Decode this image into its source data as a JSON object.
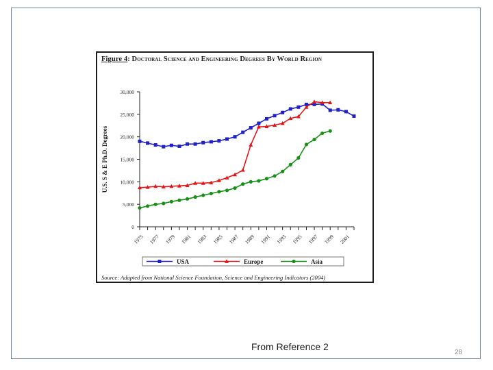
{
  "slide": {
    "caption": "From Reference 2",
    "page_number": "28"
  },
  "figure": {
    "title_label": "Figure 4",
    "title_text": ": Doctoral Science and Engineering Degrees By World Region",
    "source": "Source: Adapted from National Science Foundation, Science and Engineering Indicators (2004)"
  },
  "chart_data": {
    "type": "line",
    "title": "Figure 4: Doctoral Science and Engineering Degrees By World Region",
    "xlabel": "",
    "ylabel": "U.S. S & E Ph.D. Degrees",
    "x": [
      1975,
      1976,
      1977,
      1978,
      1979,
      1980,
      1981,
      1982,
      1983,
      1984,
      1985,
      1986,
      1987,
      1988,
      1989,
      1990,
      1991,
      1992,
      1993,
      1994,
      1995,
      1996,
      1997,
      1998,
      1999,
      2000,
      2001,
      2002
    ],
    "xticks": [
      1975,
      1977,
      1979,
      1981,
      1983,
      1985,
      1987,
      1989,
      1991,
      1993,
      1995,
      1997,
      1999,
      2001
    ],
    "xlim": [
      1975,
      2002
    ],
    "ylim": [
      0,
      30000
    ],
    "yticks": [
      0,
      5000,
      10000,
      15000,
      20000,
      25000,
      30000
    ],
    "ytick_labels": [
      "0",
      "5,000",
      "10,000",
      "15,000",
      "20,000",
      "25,000",
      "30,000"
    ],
    "grid": false,
    "legend_position": "bottom",
    "series": [
      {
        "name": "USA",
        "color": "#2020c8",
        "marker": "square",
        "values": [
          19000,
          18600,
          18200,
          17800,
          18100,
          17900,
          18400,
          18400,
          18700,
          18900,
          19100,
          19500,
          20000,
          21000,
          22000,
          23000,
          24000,
          24700,
          25400,
          26200,
          26600,
          27200,
          27200,
          27300,
          25900,
          26000,
          25600,
          24600
        ]
      },
      {
        "name": "Europe",
        "color": "#e01818",
        "marker": "triangle",
        "values": [
          8700,
          8800,
          9000,
          8900,
          9000,
          9100,
          9200,
          9700,
          9700,
          9800,
          10300,
          10900,
          11600,
          12600,
          18200,
          22200,
          22300,
          22600,
          23000,
          24100,
          24500,
          26600,
          27800,
          27600,
          27600,
          null,
          null,
          null
        ]
      },
      {
        "name": "Asia",
        "color": "#189018",
        "marker": "circle",
        "values": [
          4200,
          4600,
          5000,
          5200,
          5600,
          5900,
          6200,
          6600,
          7000,
          7400,
          7800,
          8100,
          8600,
          9500,
          10000,
          10200,
          10700,
          11300,
          12300,
          13800,
          15300,
          18300,
          19400,
          20800,
          21300,
          null,
          null,
          null
        ]
      }
    ]
  }
}
